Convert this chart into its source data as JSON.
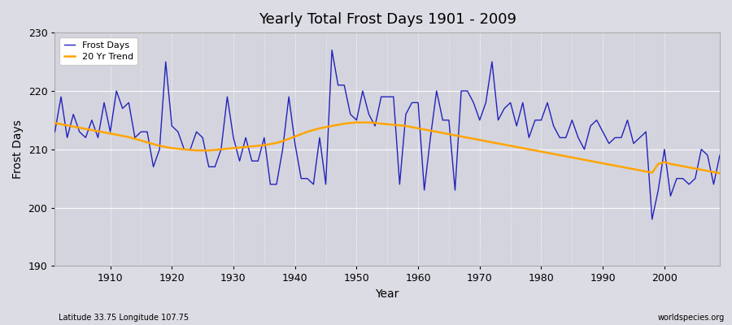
{
  "title": "Yearly Total Frost Days 1901 - 2009",
  "xlabel": "Year",
  "ylabel": "Frost Days",
  "subtitle": "Latitude 33.75 Longitude 107.75",
  "watermark": "worldspecies.org",
  "ylim": [
    190,
    230
  ],
  "xlim": [
    1901,
    2009
  ],
  "yticks": [
    190,
    200,
    210,
    220,
    230
  ],
  "xticks": [
    1910,
    1920,
    1930,
    1940,
    1950,
    1960,
    1970,
    1980,
    1990,
    2000
  ],
  "line_color": "#2222bb",
  "trend_color": "#FFA500",
  "bg_color": "#dcdce4",
  "plot_bg_color": "#d4d4de",
  "frost_days": [
    213,
    219,
    212,
    216,
    213,
    212,
    215,
    212,
    218,
    213,
    220,
    217,
    218,
    212,
    213,
    213,
    207,
    210,
    225,
    214,
    213,
    210,
    210,
    213,
    212,
    207,
    207,
    210,
    219,
    212,
    208,
    212,
    208,
    208,
    212,
    204,
    204,
    210,
    219,
    211,
    205,
    205,
    204,
    212,
    204,
    227,
    221,
    221,
    216,
    215,
    220,
    216,
    214,
    219,
    219,
    219,
    204,
    216,
    218,
    218,
    203,
    212,
    220,
    215,
    215,
    203,
    220,
    220,
    218,
    215,
    218,
    225,
    215,
    217,
    218,
    214,
    218,
    212,
    215,
    215,
    218,
    214,
    212,
    212,
    215,
    212,
    210,
    214,
    215,
    213,
    211,
    212,
    212,
    215,
    211,
    212,
    213,
    198,
    203,
    210,
    202,
    205,
    205,
    204,
    205,
    210,
    209,
    204,
    209
  ],
  "years": [
    1901,
    1902,
    1903,
    1904,
    1905,
    1906,
    1907,
    1908,
    1909,
    1910,
    1911,
    1912,
    1913,
    1914,
    1915,
    1916,
    1917,
    1918,
    1919,
    1920,
    1921,
    1922,
    1923,
    1924,
    1925,
    1926,
    1927,
    1928,
    1929,
    1930,
    1931,
    1932,
    1933,
    1934,
    1935,
    1936,
    1937,
    1938,
    1939,
    1940,
    1941,
    1942,
    1943,
    1944,
    1945,
    1946,
    1947,
    1948,
    1949,
    1950,
    1951,
    1952,
    1953,
    1954,
    1955,
    1956,
    1957,
    1958,
    1959,
    1960,
    1961,
    1962,
    1963,
    1964,
    1965,
    1966,
    1967,
    1968,
    1969,
    1970,
    1971,
    1972,
    1973,
    1974,
    1975,
    1976,
    1977,
    1978,
    1979,
    1980,
    1981,
    1982,
    1983,
    1984,
    1985,
    1986,
    1987,
    1988,
    1989,
    1990,
    1991,
    1992,
    1993,
    1994,
    1995,
    1996,
    1997,
    1998,
    1999,
    2000,
    2001,
    2002,
    2003,
    2004,
    2005,
    2006,
    2007,
    2008,
    2009
  ],
  "trend_values": [
    214.5,
    214.3,
    214.1,
    213.9,
    213.7,
    213.5,
    213.3,
    213.1,
    212.9,
    212.7,
    212.5,
    212.3,
    212.1,
    211.8,
    211.5,
    211.2,
    210.9,
    210.6,
    210.4,
    210.2,
    210.1,
    210.0,
    209.9,
    209.8,
    209.8,
    209.8,
    209.9,
    210.0,
    210.1,
    210.2,
    210.3,
    210.4,
    210.5,
    210.6,
    210.7,
    210.9,
    211.1,
    211.4,
    211.8,
    212.2,
    212.6,
    213.0,
    213.3,
    213.6,
    213.8,
    214.0,
    214.2,
    214.4,
    214.5,
    214.6,
    214.6,
    214.6,
    214.5,
    214.4,
    214.3,
    214.2,
    214.1,
    214.0,
    213.8,
    213.6,
    213.4,
    213.2,
    213.0,
    212.8,
    212.6,
    212.4,
    212.2,
    212.0,
    211.8,
    211.6,
    211.4,
    211.2,
    211.0,
    210.8,
    210.6,
    210.4,
    210.2,
    210.0,
    209.8,
    209.6,
    209.4,
    209.2,
    209.0,
    208.8,
    208.6,
    208.4,
    208.2,
    208.0,
    207.8,
    207.6,
    207.4,
    207.2,
    207.0,
    206.8,
    206.6,
    206.4,
    206.2,
    206.0,
    207.5,
    207.8,
    207.5,
    207.3,
    207.1,
    206.9,
    206.7,
    206.5,
    206.3,
    206.1,
    205.9
  ]
}
